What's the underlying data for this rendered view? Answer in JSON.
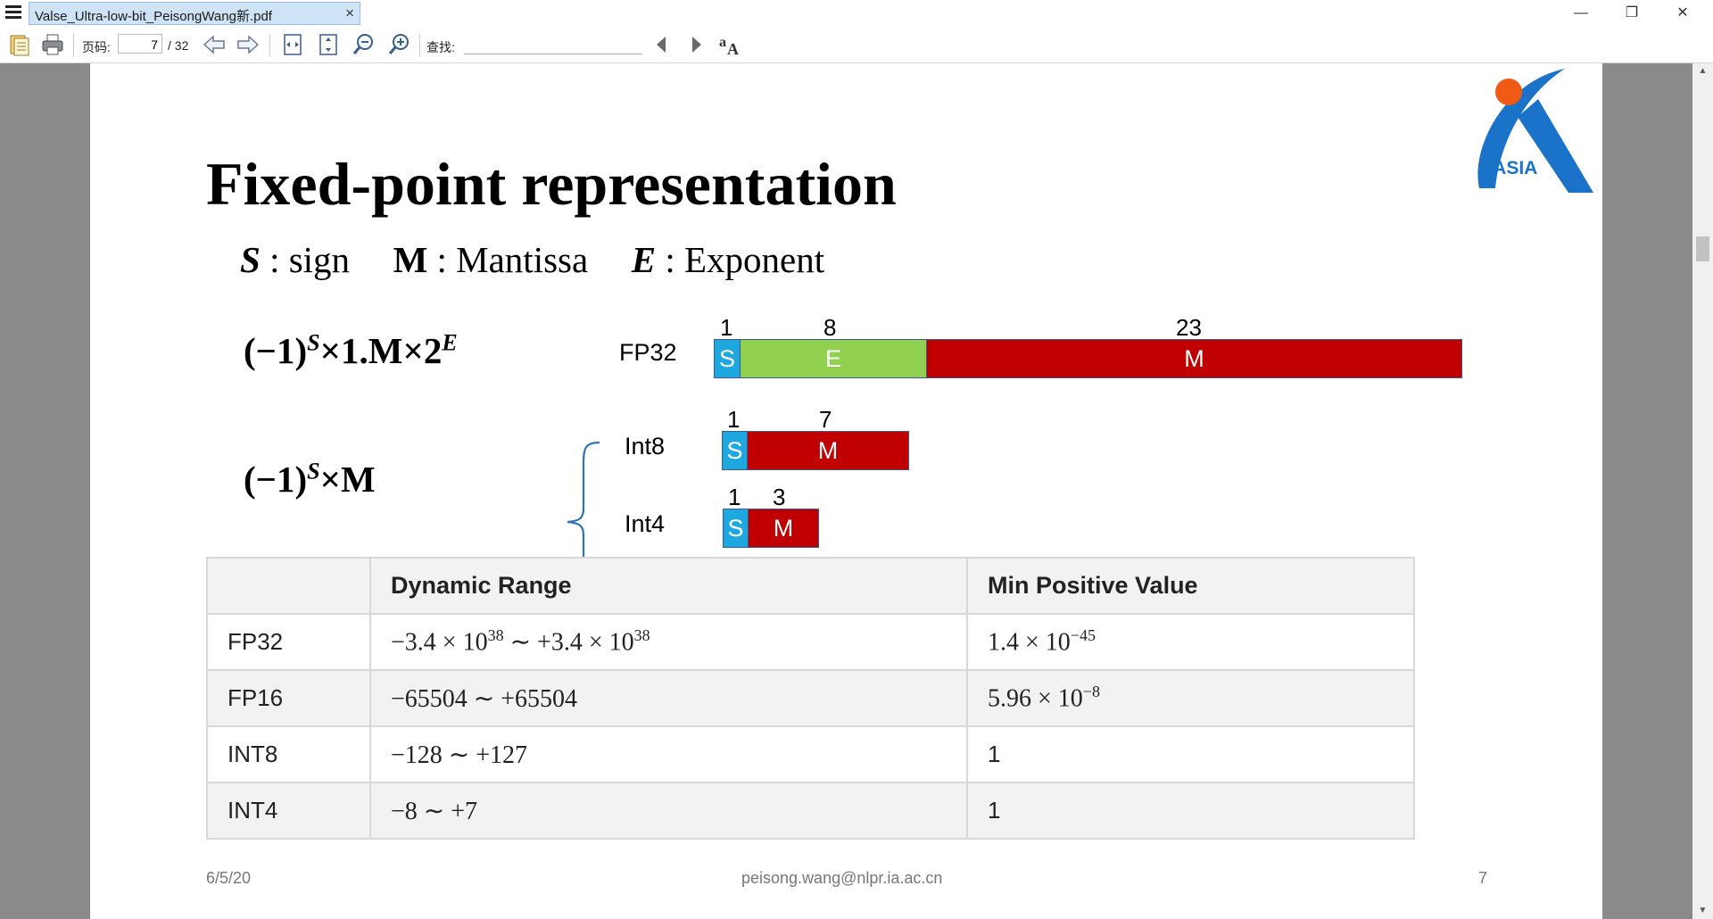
{
  "window": {
    "tab_title": "Valse_Ultra-low-bit_PeisongWang新.pdf",
    "tab_close": "×",
    "minimize": "—",
    "restore": "❐",
    "close": "✕"
  },
  "toolbar": {
    "page_label": "页码:",
    "page_value": "7",
    "page_total": "/ 32",
    "find_label": "查找:",
    "find_value": ""
  },
  "slide": {
    "title": "Fixed-point representation",
    "legend": {
      "s_symbol": "S",
      "s_text": " : sign",
      "m_symbol": "M",
      "m_text": " : Mantissa",
      "e_symbol": "E",
      "e_text": " : Exponent"
    },
    "formula_float": {
      "base": "(−1)",
      "sup1": "S",
      "mid": "×1.M×2",
      "sup2": "E"
    },
    "formula_int": {
      "base": "(−1)",
      "sup1": "S",
      "mid": "×M"
    },
    "fp32": {
      "label": "FP32",
      "bits": [
        "1",
        "8",
        "23"
      ],
      "segments": [
        "S",
        "E",
        "M"
      ]
    },
    "int8": {
      "label": "Int8",
      "bits": [
        "1",
        "7"
      ],
      "segments": [
        "S",
        "M"
      ]
    },
    "int4": {
      "label": "Int4",
      "bits": [
        "1",
        "3"
      ],
      "segments": [
        "S",
        "M"
      ]
    },
    "table": {
      "headers": [
        "",
        "Dynamic Range",
        "Min Positive Value"
      ],
      "rows": [
        {
          "name": "FP32",
          "range": "−3.4 × 10",
          "range_exp": "38",
          "range_mid": " ∼ +3.4 × 10",
          "range_exp2": "38",
          "min": "1.4 × 10",
          "min_exp": "−45"
        },
        {
          "name": "FP16",
          "range": "−65504 ∼ +65504",
          "min": "5.96 × 10",
          "min_exp": "−8"
        },
        {
          "name": "INT8",
          "range": "−128 ∼ +127",
          "min": "1"
        },
        {
          "name": "INT4",
          "range": "−8 ∼ +7",
          "min": "1"
        }
      ]
    },
    "footer": {
      "date": "6/5/20",
      "email": "peisong.wang@nlpr.ia.ac.cn",
      "page": "7"
    },
    "logo_text": "CASIA"
  },
  "colors": {
    "sign_blue": "#1fa8e0",
    "exponent_green": "#92d050",
    "mantissa_red": "#c00000",
    "logo_blue": "#1a73c8",
    "logo_orange": "#f05a14"
  }
}
